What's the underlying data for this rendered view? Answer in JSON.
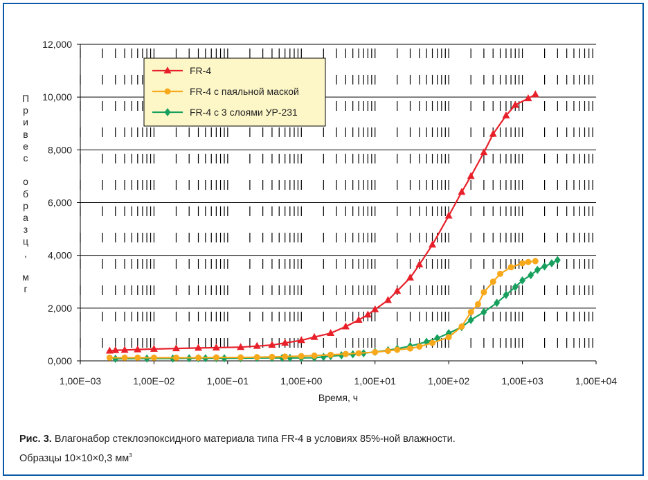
{
  "chart_data": {
    "type": "scatter",
    "title": "",
    "xlabel": "Время, ч",
    "ylabel": "Привес образц, мг",
    "x_scale": "log",
    "xlim": [
      0.001,
      10000
    ],
    "ylim": [
      0,
      12000
    ],
    "x_tick_labels": [
      "1,00E−03",
      "1,00E−02",
      "1,00E−01",
      "1,00E+00",
      "1,00E+01",
      "1,00E+02",
      "1,00E+03",
      "1,00E+04"
    ],
    "y_tick_labels": [
      "0,000",
      "2,000",
      "4,000",
      "6,000",
      "8,000",
      "10,000",
      "12,000"
    ],
    "grid": "major horizontal lines, dashed log-minor verticals",
    "legend_position": "top-left",
    "series": [
      {
        "name": "FR-4",
        "color": "#e8202a",
        "marker": "triangle",
        "x": [
          0.0025,
          0.003,
          0.004,
          0.006,
          0.01,
          0.02,
          0.04,
          0.07,
          0.15,
          0.25,
          0.4,
          0.6,
          1.0,
          1.5,
          2.5,
          4,
          6,
          8,
          10,
          15,
          20,
          30,
          40,
          60,
          100,
          150,
          200,
          300,
          400,
          600,
          800,
          1200,
          1500
        ],
        "y": [
          380,
          400,
          410,
          430,
          450,
          470,
          490,
          500,
          520,
          560,
          600,
          680,
          780,
          900,
          1050,
          1300,
          1550,
          1750,
          1950,
          2300,
          2650,
          3150,
          3650,
          4400,
          5500,
          6400,
          7000,
          7900,
          8600,
          9300,
          9700,
          9950,
          10100
        ]
      },
      {
        "name": "FR-4 с паяльной маской",
        "color": "#f7a81b",
        "marker": "circle",
        "x": [
          0.0025,
          0.004,
          0.006,
          0.01,
          0.02,
          0.04,
          0.07,
          0.15,
          0.25,
          0.4,
          0.6,
          1.0,
          1.5,
          2.5,
          4,
          6,
          10,
          15,
          20,
          30,
          40,
          60,
          100,
          150,
          200,
          250,
          300,
          400,
          500,
          700,
          1000,
          1200,
          1500
        ],
        "y": [
          120,
          120,
          120,
          120,
          120,
          120,
          130,
          130,
          140,
          150,
          160,
          180,
          200,
          230,
          260,
          290,
          330,
          380,
          420,
          470,
          540,
          680,
          900,
          1300,
          1850,
          2150,
          2600,
          3000,
          3300,
          3550,
          3700,
          3750,
          3780
        ]
      },
      {
        "name": "FR-4 с 3 слоями УР-231",
        "color": "#17a05d",
        "marker": "diamond",
        "x": [
          0.003,
          0.008,
          0.018,
          0.03,
          0.04,
          0.05,
          0.07,
          0.09,
          0.15,
          0.25,
          0.4,
          0.55,
          0.7,
          1.0,
          1.5,
          2.0,
          2.5,
          3.5,
          5,
          7,
          10,
          15,
          20,
          30,
          50,
          70,
          100,
          150,
          200,
          300,
          450,
          600,
          800,
          1000,
          1300,
          1600,
          2000,
          2500,
          3000
        ],
        "y": [
          80,
          90,
          90,
          100,
          100,
          100,
          100,
          100,
          100,
          110,
          110,
          110,
          110,
          110,
          120,
          150,
          180,
          210,
          250,
          290,
          340,
          400,
          460,
          560,
          720,
          860,
          1050,
          1280,
          1550,
          1850,
          2200,
          2500,
          2800,
          3050,
          3250,
          3450,
          3580,
          3700,
          3820
        ]
      }
    ]
  },
  "caption": {
    "figure_label": "Рис. 3.",
    "line1": " Влагонабор стеклоэпоксидного материала типа FR-4 в условиях 85%-ной влажности.",
    "line2": "Образцы 10×10×0,3 мм",
    "superscript": "3"
  }
}
